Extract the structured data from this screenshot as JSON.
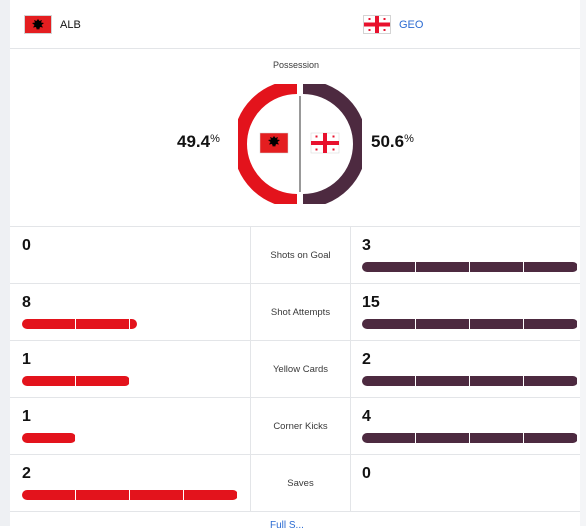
{
  "teams": {
    "home": {
      "abbr": "ALB",
      "flag_icon": "albania-flag-icon",
      "color": "#e3131c"
    },
    "away": {
      "abbr": "GEO",
      "flag_icon": "georgia-flag-icon",
      "color": "#4d2a40"
    }
  },
  "possession": {
    "title": "Possession",
    "home_value": "49.4",
    "away_value": "50.6",
    "percent_sign": "%",
    "home_fraction": 0.494,
    "away_fraction": 0.506
  },
  "stats": [
    {
      "label": "Shots on Goal",
      "home": "0",
      "away": "3",
      "home_fraction": 0.0,
      "away_fraction": 1.0
    },
    {
      "label": "Shot Attempts",
      "home": "8",
      "away": "15",
      "home_fraction": 0.533,
      "away_fraction": 1.0
    },
    {
      "label": "Yellow Cards",
      "home": "1",
      "away": "2",
      "home_fraction": 0.5,
      "away_fraction": 1.0
    },
    {
      "label": "Corner Kicks",
      "home": "1",
      "away": "4",
      "home_fraction": 0.25,
      "away_fraction": 1.0
    },
    {
      "label": "Saves",
      "home": "2",
      "away": "0",
      "home_fraction": 1.0,
      "away_fraction": 0.0
    }
  ],
  "footer": {
    "link_text": "Full S..."
  }
}
